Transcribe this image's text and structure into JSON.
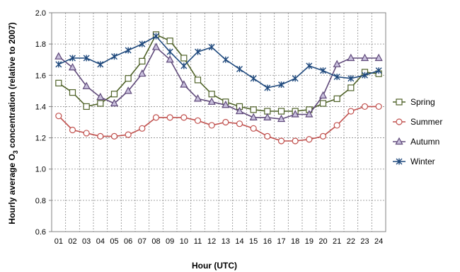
{
  "chart_data": {
    "type": "line",
    "xlabel": "Hour (UTC)",
    "ylabel_parts": [
      "Hourly average O",
      "3",
      " concentration (relative to 2007)"
    ],
    "categories": [
      "01",
      "02",
      "03",
      "04",
      "05",
      "06",
      "07",
      "08",
      "09",
      "10",
      "11",
      "12",
      "13",
      "14",
      "15",
      "16",
      "17",
      "18",
      "19",
      "20",
      "21",
      "22",
      "23",
      "24"
    ],
    "ylim": [
      0.6,
      2.0
    ],
    "yticks": [
      "0.6",
      "0.8",
      "1.0",
      "1.2",
      "1.4",
      "1.6",
      "1.8",
      "2.0"
    ],
    "grid": "dashed",
    "legend_position": "right",
    "series": [
      {
        "name": "Spring",
        "color": "#4f6228",
        "marker": "square",
        "values": [
          1.55,
          1.49,
          1.4,
          1.42,
          1.48,
          1.58,
          1.69,
          1.86,
          1.82,
          1.71,
          1.57,
          1.48,
          1.43,
          1.4,
          1.38,
          1.37,
          1.37,
          1.37,
          1.38,
          1.42,
          1.45,
          1.52,
          1.62,
          1.61
        ]
      },
      {
        "name": "Summer",
        "color": "#c0504d",
        "marker": "circle",
        "values": [
          1.34,
          1.25,
          1.23,
          1.21,
          1.21,
          1.22,
          1.26,
          1.33,
          1.33,
          1.33,
          1.31,
          1.28,
          1.3,
          1.29,
          1.26,
          1.21,
          1.18,
          1.18,
          1.19,
          1.21,
          1.28,
          1.37,
          1.4,
          1.4
        ]
      },
      {
        "name": "Autumn",
        "color": "#5f497a",
        "marker": "triangle",
        "values": [
          1.72,
          1.65,
          1.53,
          1.46,
          1.42,
          1.5,
          1.61,
          1.78,
          1.7,
          1.54,
          1.45,
          1.43,
          1.41,
          1.37,
          1.33,
          1.33,
          1.32,
          1.35,
          1.35,
          1.47,
          1.67,
          1.71,
          1.71,
          1.71
        ]
      },
      {
        "name": "Winter",
        "color": "#1f497d",
        "marker": "star",
        "values": [
          1.67,
          1.71,
          1.71,
          1.67,
          1.72,
          1.76,
          1.8,
          1.85,
          1.75,
          1.66,
          1.75,
          1.78,
          1.7,
          1.64,
          1.58,
          1.52,
          1.54,
          1.58,
          1.66,
          1.63,
          1.59,
          1.58,
          1.6,
          1.63
        ]
      }
    ]
  }
}
